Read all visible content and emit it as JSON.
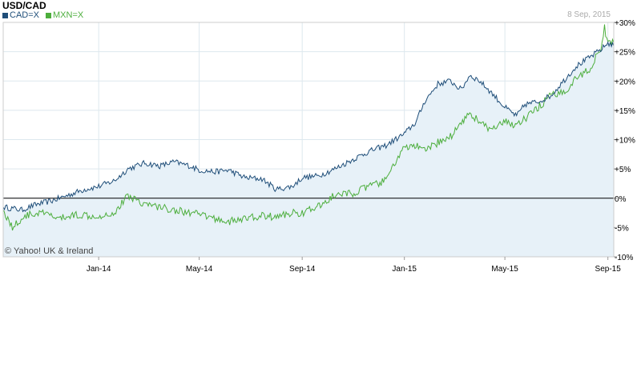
{
  "header": {
    "title": "USD/CAD",
    "date": "8 Sep, 2015",
    "copyright": "© Yahoo! UK & Ireland"
  },
  "colors": {
    "cad": "#1f4e79",
    "mxn": "#4cae3c",
    "fill": "#e7f1f8",
    "grid": "#dde8ee",
    "zero": "#000000"
  },
  "chart_data": {
    "type": "line",
    "ylim": [
      -10,
      30
    ],
    "y_ticks": [
      {
        "value": 30,
        "label": "+30%"
      },
      {
        "value": 25,
        "label": "+25%"
      },
      {
        "value": 20,
        "label": "+20%"
      },
      {
        "value": 15,
        "label": "+15%"
      },
      {
        "value": 10,
        "label": "+10%"
      },
      {
        "value": 5,
        "label": "+5%"
      },
      {
        "value": 0,
        "label": "0%"
      },
      {
        "value": -5,
        "label": "-5%"
      },
      {
        "value": -10,
        "label": "-10%"
      }
    ],
    "x_range": [
      "2013-09-09",
      "2015-09-08"
    ],
    "x_ticks": [
      {
        "date": "2014-01-01",
        "label": "Jan-14"
      },
      {
        "date": "2014-05-01",
        "label": "May-14"
      },
      {
        "date": "2014-09-01",
        "label": "Sep-14"
      },
      {
        "date": "2015-01-01",
        "label": "Jan-15"
      },
      {
        "date": "2015-05-01",
        "label": "May-15"
      },
      {
        "date": "2015-09-01",
        "label": "Sep-15"
      }
    ],
    "series": [
      {
        "name": "CAD=X",
        "color": "#1f4e79",
        "points": [
          [
            "2013-09-09",
            -1.5
          ],
          [
            "2013-10-01",
            -2.0
          ],
          [
            "2013-10-20",
            -1.0
          ],
          [
            "2013-11-05",
            -0.5
          ],
          [
            "2013-11-25",
            0.5
          ],
          [
            "2013-12-15",
            1.5
          ],
          [
            "2014-01-01",
            2.0
          ],
          [
            "2014-01-20",
            3.0
          ],
          [
            "2014-02-05",
            5.0
          ],
          [
            "2014-02-25",
            6.0
          ],
          [
            "2014-03-15",
            5.5
          ],
          [
            "2014-04-01",
            6.2
          ],
          [
            "2014-04-20",
            5.5
          ],
          [
            "2014-05-01",
            4.8
          ],
          [
            "2014-05-20",
            4.5
          ],
          [
            "2014-06-05",
            4.8
          ],
          [
            "2014-06-25",
            3.5
          ],
          [
            "2014-07-15",
            3.3
          ],
          [
            "2014-08-01",
            1.5
          ],
          [
            "2014-08-20",
            2.0
          ],
          [
            "2014-09-01",
            3.5
          ],
          [
            "2014-09-20",
            3.8
          ],
          [
            "2014-10-10",
            5.0
          ],
          [
            "2014-10-30",
            6.5
          ],
          [
            "2014-11-20",
            8.0
          ],
          [
            "2014-12-10",
            9.0
          ],
          [
            "2015-01-01",
            11.0
          ],
          [
            "2015-01-15",
            13.0
          ],
          [
            "2015-01-25",
            16.5
          ],
          [
            "2015-02-10",
            19.5
          ],
          [
            "2015-02-25",
            20.0
          ],
          [
            "2015-03-10",
            18.5
          ],
          [
            "2015-03-20",
            21.0
          ],
          [
            "2015-04-01",
            20.0
          ],
          [
            "2015-04-15",
            18.0
          ],
          [
            "2015-05-01",
            15.5
          ],
          [
            "2015-05-15",
            14.0
          ],
          [
            "2015-05-25",
            16.0
          ],
          [
            "2015-06-10",
            16.5
          ],
          [
            "2015-06-25",
            17.5
          ],
          [
            "2015-07-10",
            20.0
          ],
          [
            "2015-07-25",
            22.5
          ],
          [
            "2015-08-10",
            24.0
          ],
          [
            "2015-08-25",
            25.5
          ],
          [
            "2015-09-01",
            26.5
          ],
          [
            "2015-09-08",
            26.0
          ]
        ]
      },
      {
        "name": "MXN=X",
        "color": "#4cae3c",
        "points": [
          [
            "2013-09-09",
            -2.0
          ],
          [
            "2013-09-20",
            -5.0
          ],
          [
            "2013-10-05",
            -3.0
          ],
          [
            "2013-10-25",
            -2.5
          ],
          [
            "2013-11-15",
            -3.5
          ],
          [
            "2013-12-05",
            -2.8
          ],
          [
            "2014-01-01",
            -3.0
          ],
          [
            "2014-01-20",
            -2.5
          ],
          [
            "2014-02-05",
            0.5
          ],
          [
            "2014-02-25",
            -1.0
          ],
          [
            "2014-03-15",
            -1.5
          ],
          [
            "2014-04-01",
            -2.0
          ],
          [
            "2014-04-20",
            -2.5
          ],
          [
            "2014-05-01",
            -2.8
          ],
          [
            "2014-05-20",
            -3.5
          ],
          [
            "2014-06-05",
            -4.0
          ],
          [
            "2014-06-25",
            -3.5
          ],
          [
            "2014-07-15",
            -3.0
          ],
          [
            "2014-08-01",
            -3.2
          ],
          [
            "2014-08-20",
            -2.5
          ],
          [
            "2014-09-01",
            -2.5
          ],
          [
            "2014-09-20",
            -1.5
          ],
          [
            "2014-10-10",
            0.5
          ],
          [
            "2014-10-30",
            0.8
          ],
          [
            "2014-11-20",
            2.0
          ],
          [
            "2014-12-10",
            3.0
          ],
          [
            "2014-12-20",
            6.0
          ],
          [
            "2015-01-01",
            8.5
          ],
          [
            "2015-01-15",
            9.0
          ],
          [
            "2015-01-25",
            8.0
          ],
          [
            "2015-02-10",
            9.5
          ],
          [
            "2015-02-25",
            10.5
          ],
          [
            "2015-03-10",
            13.0
          ],
          [
            "2015-03-20",
            14.5
          ],
          [
            "2015-04-01",
            13.0
          ],
          [
            "2015-04-15",
            11.5
          ],
          [
            "2015-05-01",
            13.0
          ],
          [
            "2015-05-15",
            12.5
          ],
          [
            "2015-05-25",
            13.5
          ],
          [
            "2015-06-10",
            15.5
          ],
          [
            "2015-06-25",
            17.5
          ],
          [
            "2015-07-10",
            18.0
          ],
          [
            "2015-07-25",
            20.5
          ],
          [
            "2015-08-10",
            22.0
          ],
          [
            "2015-08-25",
            26.0
          ],
          [
            "2015-08-28",
            29.0
          ],
          [
            "2015-09-01",
            26.5
          ],
          [
            "2015-09-08",
            26.5
          ]
        ]
      }
    ]
  }
}
